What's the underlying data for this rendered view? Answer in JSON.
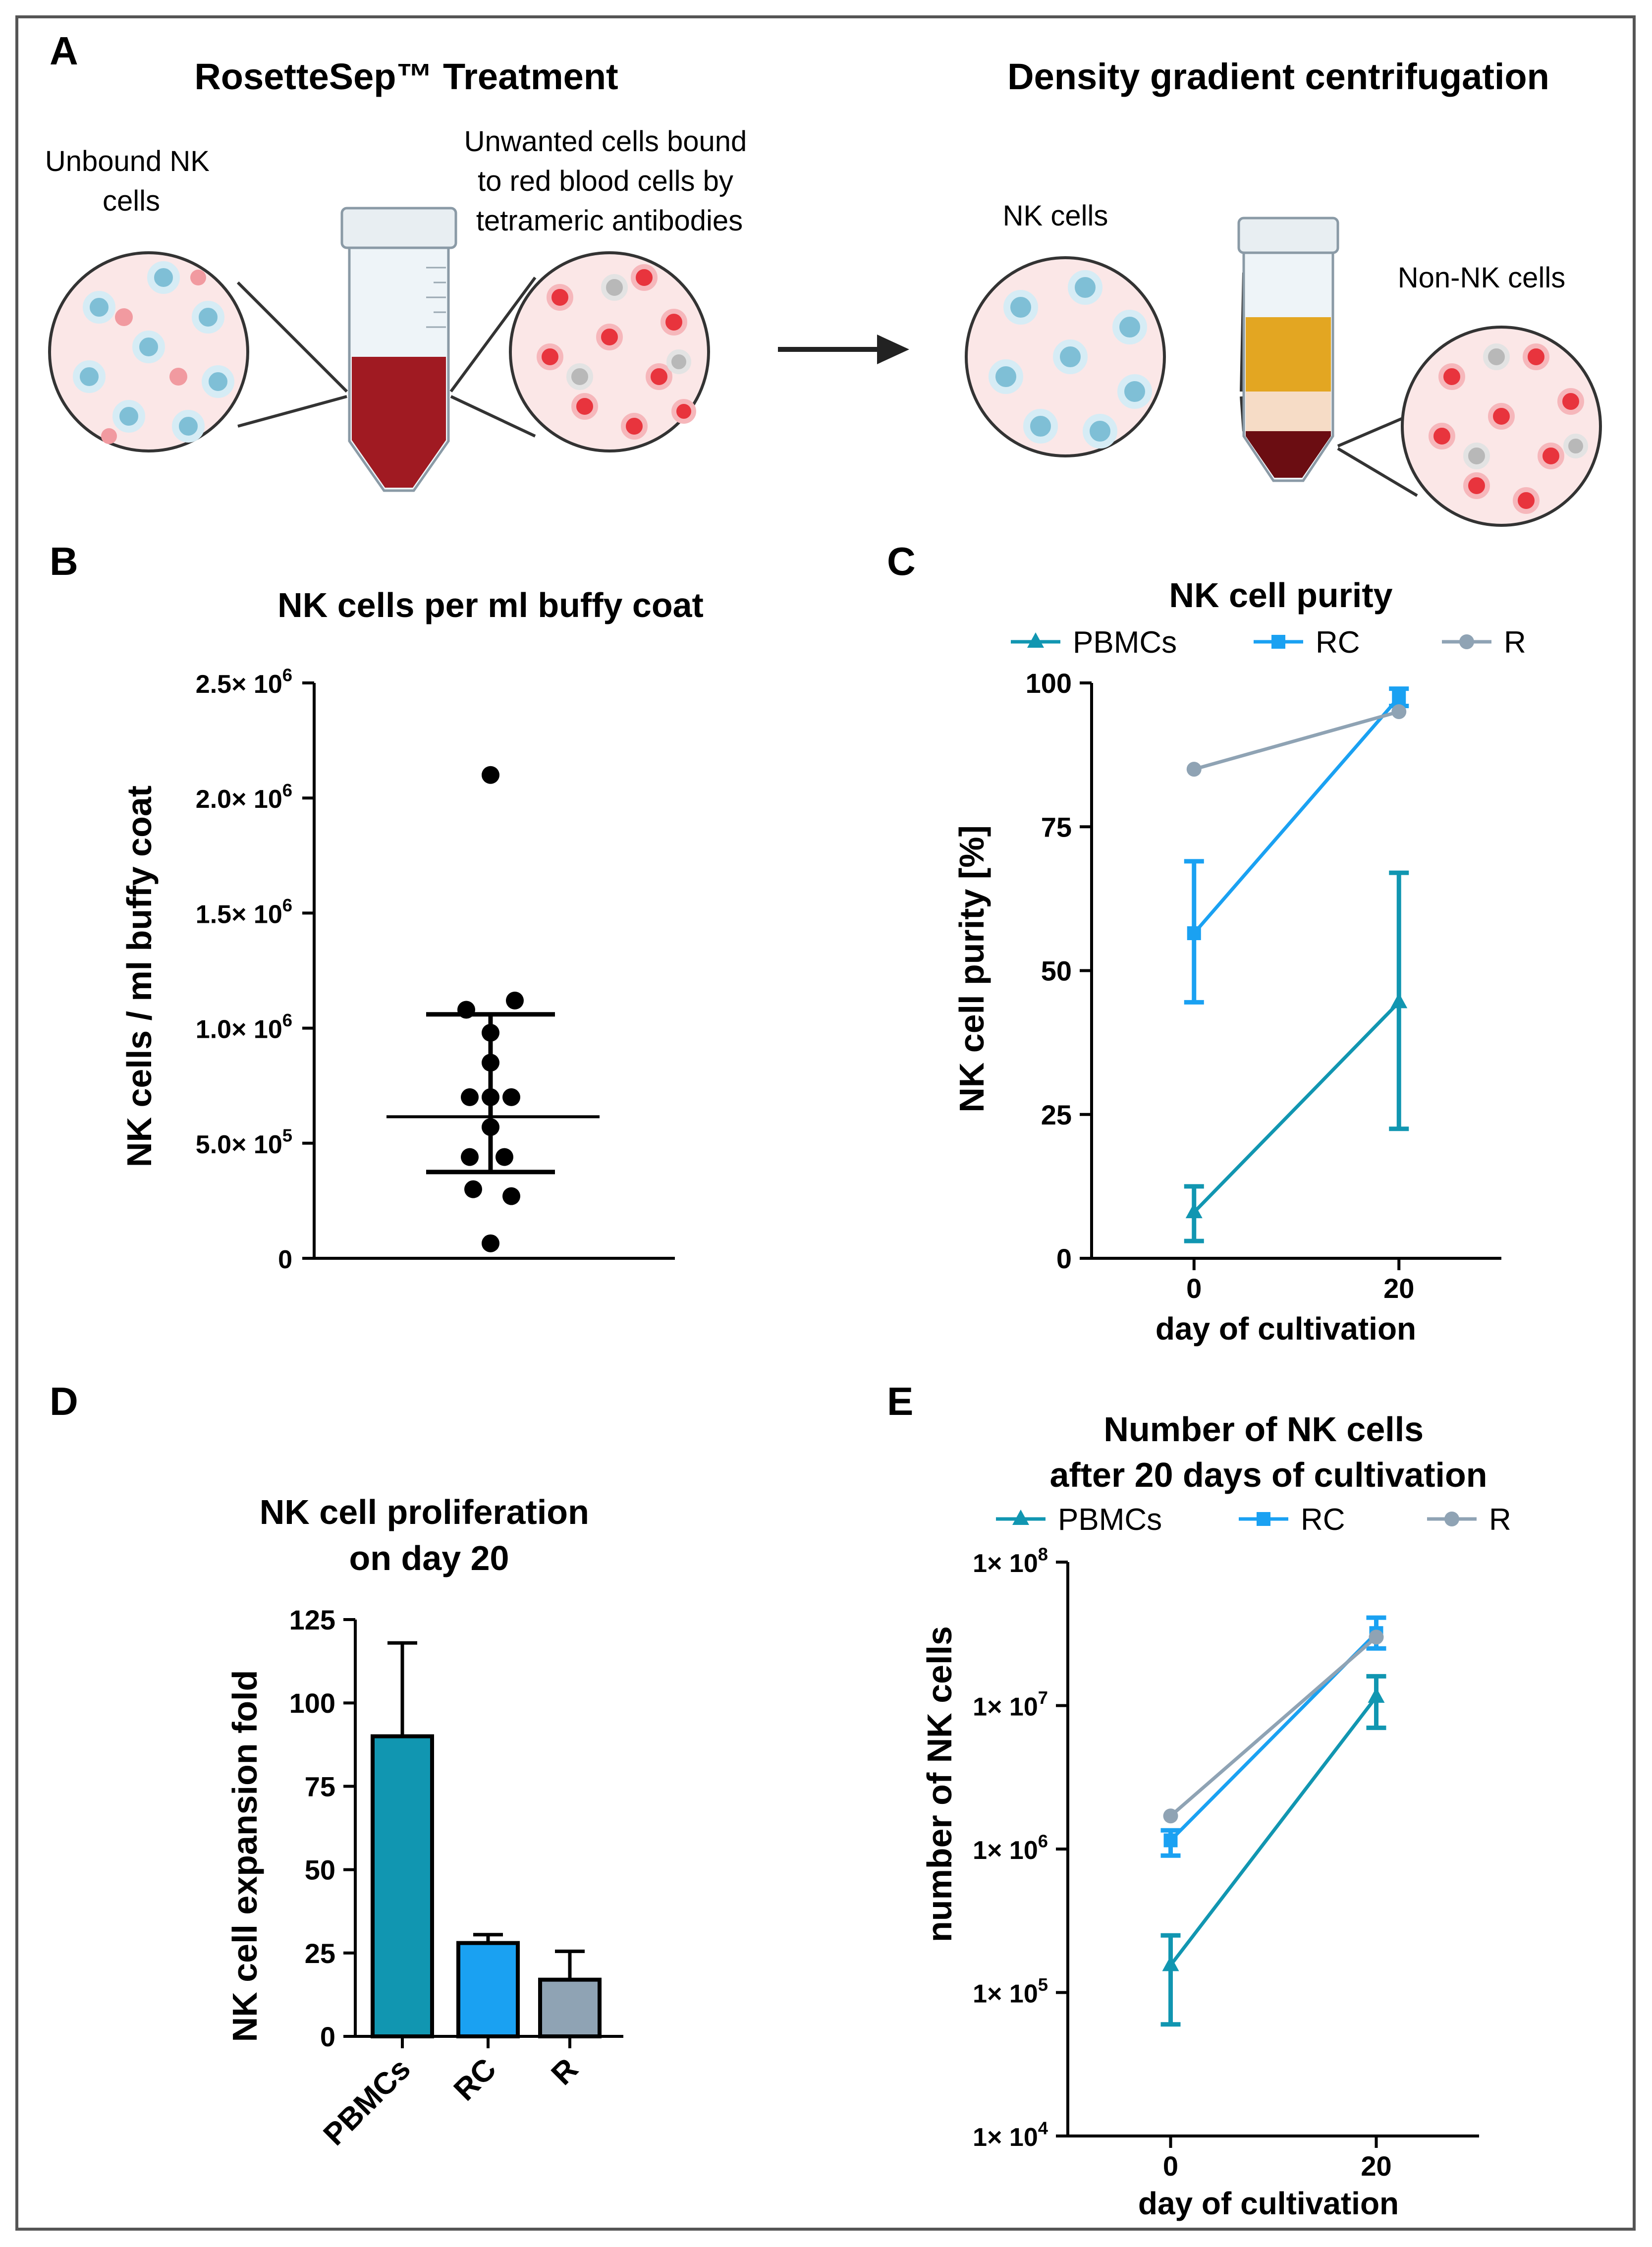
{
  "colors": {
    "pbmc": "#1196b1",
    "rc": "#1aa1f2",
    "r": "#8fa3b4",
    "blood": "#a01a22",
    "plasma": "#e3a622",
    "nk_cell": "#7fbfd6",
    "rbc": "#e8343d",
    "non_nk": "#b8b8b8",
    "axis": "#000000"
  },
  "panel_a": {
    "letter": "A",
    "left_title": "RosetteSep™ Treatment",
    "right_title": "Density gradient centrifugation",
    "label_unbound": [
      "Unbound NK",
      "cells"
    ],
    "label_unwanted": [
      "Unwanted cells bound",
      "to red blood cells by",
      "tetrameric antibodies"
    ],
    "label_nk": "NK cells",
    "label_non_nk": "Non-NK cells"
  },
  "chart_data": [
    {
      "id": "B",
      "letter": "B",
      "type": "scatter",
      "title": "NK cells per ml buffy coat",
      "xlabel": "",
      "ylabel": "NK cells / ml buffy coat",
      "ylim": [
        0,
        2500000
      ],
      "yticks": [
        0,
        500000,
        1000000,
        1500000,
        2000000,
        2500000
      ],
      "ytick_labels": [
        {
          "mant": "0",
          "exp": ""
        },
        {
          "mant": "5.0× 10",
          "exp": "5"
        },
        {
          "mant": "1.0× 10",
          "exp": "6"
        },
        {
          "mant": "1.5× 10",
          "exp": "6"
        },
        {
          "mant": "2.0× 10",
          "exp": "6"
        },
        {
          "mant": "2.5× 10",
          "exp": "6"
        }
      ],
      "points": [
        {
          "offset": 0,
          "value": 2100000
        },
        {
          "offset": -0.7,
          "value": 1080000
        },
        {
          "offset": 0.7,
          "value": 1120000
        },
        {
          "offset": 0,
          "value": 980000
        },
        {
          "offset": 0,
          "value": 850000
        },
        {
          "offset": -0.6,
          "value": 700000
        },
        {
          "offset": 0,
          "value": 700000
        },
        {
          "offset": 0.6,
          "value": 700000
        },
        {
          "offset": 0,
          "value": 570000
        },
        {
          "offset": -0.6,
          "value": 440000
        },
        {
          "offset": 0.4,
          "value": 440000
        },
        {
          "offset": -0.5,
          "value": 300000
        },
        {
          "offset": 0.6,
          "value": 270000
        },
        {
          "offset": 0,
          "value": 65000
        }
      ],
      "median": 615000,
      "q1": 375000,
      "q3": 1060000
    },
    {
      "id": "C",
      "letter": "C",
      "type": "line",
      "title": "NK cell purity",
      "xlabel": "day of cultivation",
      "ylabel": "NK cell purity [%]",
      "x": [
        0,
        20
      ],
      "xlim": [
        -10,
        30
      ],
      "ylim": [
        0,
        100
      ],
      "yticks": [
        0,
        25,
        50,
        75,
        100
      ],
      "xticks": [
        0,
        20
      ],
      "legend": [
        "PBMCs",
        "RC",
        "R"
      ],
      "series": [
        {
          "name": "PBMCs",
          "color": "#1196b1",
          "marker": "triangle",
          "values": [
            8,
            44.5
          ],
          "err_low": [
            3,
            22.5
          ],
          "err_high": [
            12.5,
            67
          ]
        },
        {
          "name": "RC",
          "color": "#1aa1f2",
          "marker": "square",
          "values": [
            56.5,
            97.5
          ],
          "err_low": [
            44.5,
            96
          ],
          "err_high": [
            69,
            99
          ]
        },
        {
          "name": "R",
          "color": "#8fa3b4",
          "marker": "circle",
          "values": [
            85,
            95
          ],
          "err_low": [
            85,
            95
          ],
          "err_high": [
            85,
            95
          ]
        }
      ]
    },
    {
      "id": "D",
      "letter": "D",
      "type": "bar",
      "title": [
        "NK cell proliferation",
        "on day 20"
      ],
      "xlabel": "",
      "ylabel": "NK cell expansion fold",
      "categories": [
        "PBMCs",
        "RC",
        "R"
      ],
      "values": [
        90,
        28,
        17
      ],
      "err_high": [
        118,
        30.5,
        25.5
      ],
      "colors": [
        "#1196b1",
        "#1aa1f2",
        "#8fa3b4"
      ],
      "ylim": [
        0,
        125
      ],
      "yticks": [
        0,
        25,
        50,
        75,
        100,
        125
      ]
    },
    {
      "id": "E",
      "letter": "E",
      "type": "line",
      "scale": "log",
      "title": [
        "Number of NK cells",
        "after 20 days of cultivation"
      ],
      "xlabel": "day of cultivation",
      "ylabel": "number of NK cells",
      "x": [
        0,
        20
      ],
      "xlim": [
        -10,
        30
      ],
      "ylim": [
        10000,
        100000000
      ],
      "yticks": [
        10000,
        100000,
        1000000,
        10000000,
        100000000
      ],
      "ytick_labels": [
        {
          "mant": "1× 10",
          "exp": "4"
        },
        {
          "mant": "1× 10",
          "exp": "5"
        },
        {
          "mant": "1× 10",
          "exp": "6"
        },
        {
          "mant": "1× 10",
          "exp": "7"
        },
        {
          "mant": "1× 10",
          "exp": "8"
        }
      ],
      "xticks": [
        0,
        20
      ],
      "legend": [
        "PBMCs",
        "RC",
        "R"
      ],
      "series": [
        {
          "name": "PBMCs",
          "color": "#1196b1",
          "marker": "triangle",
          "values": [
            155000,
            11500000
          ],
          "err_low": [
            60000,
            7000000
          ],
          "err_high": [
            250000,
            16000000
          ]
        },
        {
          "name": "RC",
          "color": "#1aa1f2",
          "marker": "square",
          "values": [
            1150000,
            32000000
          ],
          "err_low": [
            900000,
            25000000
          ],
          "err_high": [
            1350000,
            41000000
          ]
        },
        {
          "name": "R",
          "color": "#8fa3b4",
          "marker": "circle",
          "values": [
            1700000,
            30000000
          ],
          "err_low": [
            1700000,
            30000000
          ],
          "err_high": [
            1700000,
            30000000
          ]
        }
      ]
    }
  ]
}
